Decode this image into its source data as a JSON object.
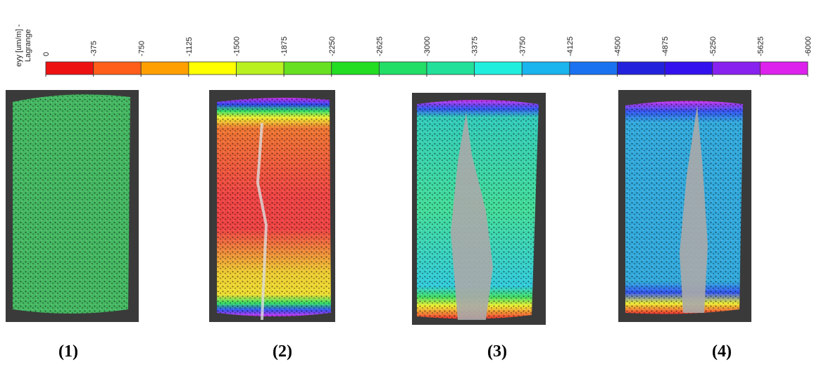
{
  "colorbar": {
    "label_lines": [
      "eyy [um/m] -",
      "Lagrange"
    ],
    "ticks": [
      0,
      -375,
      -750,
      -1125,
      -1500,
      -1875,
      -2250,
      -2625,
      -3000,
      -3375,
      -3750,
      -4125,
      -4500,
      -4875,
      -5250,
      -5625,
      -6000
    ],
    "colors": [
      "#ee1111",
      "#ff5e1a",
      "#ffa000",
      "#ffff00",
      "#b8f020",
      "#66e020",
      "#22dd22",
      "#22dd66",
      "#22e09a",
      "#22eedd",
      "#1ab4ee",
      "#1a72f0",
      "#2222dd",
      "#3311ee",
      "#8822ee",
      "#dd22ee"
    ]
  },
  "panels": [
    {
      "label": "(1)"
    },
    {
      "label": "(2)"
    },
    {
      "label": "(3)"
    },
    {
      "label": "(4)"
    }
  ]
}
